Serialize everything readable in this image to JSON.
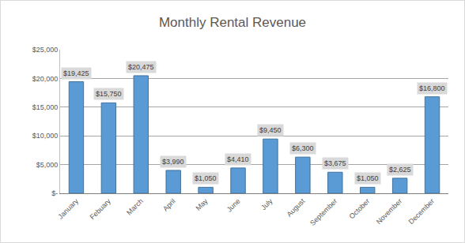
{
  "chart_data": {
    "type": "bar",
    "title": "Monthly Rental Revenue",
    "categories": [
      "January",
      "Febuary",
      "March",
      "April",
      "May",
      "June",
      "July",
      "August",
      "September",
      "October",
      "November",
      "December"
    ],
    "values": [
      19425,
      15750,
      20475,
      3990,
      1050,
      4410,
      9450,
      6300,
      3675,
      1050,
      2625,
      16800
    ],
    "value_labels": [
      "$19,425",
      "$15,750",
      "$20,475",
      "$3,990",
      "$1,050",
      "$4,410",
      "$9,450",
      "$6,300",
      "$3,675",
      "$1,050",
      "$2,625",
      "$16,800"
    ],
    "data_labels": true,
    "color": "#5b9bd5",
    "ylim": [
      0,
      25000
    ],
    "yticks": [
      {
        "value": 0,
        "label": "$-"
      },
      {
        "value": 5000,
        "label": "$5,000"
      },
      {
        "value": 10000,
        "label": "$10,000"
      },
      {
        "value": 15000,
        "label": "$15,000"
      },
      {
        "value": 20000,
        "label": "$20,000"
      },
      {
        "value": 25000,
        "label": "$25,000"
      }
    ],
    "grid": true
  }
}
